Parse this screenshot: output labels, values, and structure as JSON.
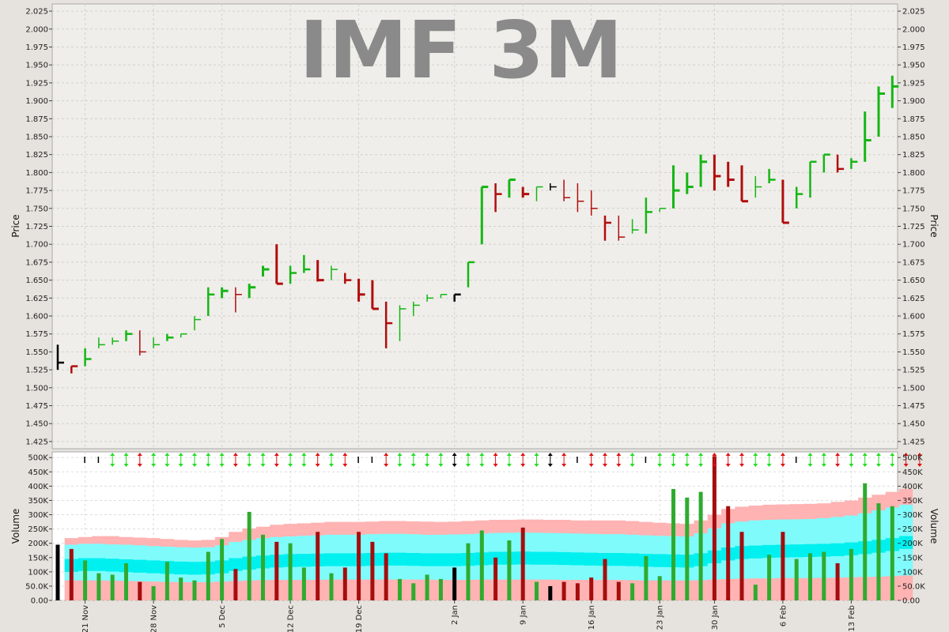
{
  "chart_data": {
    "type": "bar",
    "title": "IMF 3M",
    "price_axis": {
      "label": "Price",
      "ylim": [
        1.415,
        2.035
      ],
      "ticks": [
        "2.025",
        "2.000",
        "1.975",
        "1.950",
        "1.925",
        "1.900",
        "1.875",
        "1.850",
        "1.825",
        "1.800",
        "1.775",
        "1.750",
        "1.725",
        "1.700",
        "1.675",
        "1.650",
        "1.625",
        "1.600",
        "1.575",
        "1.550",
        "1.525",
        "1.500",
        "1.475",
        "1.450",
        "1.425"
      ]
    },
    "volume_axis": {
      "label": "Volume",
      "ylim": [
        0,
        520000
      ],
      "ticks": [
        "500K",
        "450K",
        "400K",
        "350K",
        "300K",
        "250K",
        "200K",
        "150K",
        "100K",
        "50.0K",
        "0.00"
      ]
    },
    "x_ticks": [
      {
        "label": "21 Nov",
        "i": 2
      },
      {
        "label": "28 Nov",
        "i": 7
      },
      {
        "label": "5 Dec",
        "i": 12
      },
      {
        "label": "12 Dec",
        "i": 17
      },
      {
        "label": "19 Dec",
        "i": 22
      },
      {
        "label": "2 Jan",
        "i": 29
      },
      {
        "label": "9 Jan",
        "i": 34
      },
      {
        "label": "16 Jan",
        "i": 39
      },
      {
        "label": "23 Jan",
        "i": 44
      },
      {
        "label": "30 Jan",
        "i": 48
      },
      {
        "label": "6 Feb",
        "i": 53
      },
      {
        "label": "13 Feb",
        "i": 58
      }
    ],
    "bars": [
      {
        "o": 1.535,
        "h": 1.56,
        "l": 1.525,
        "c": 1.535,
        "v": 195000,
        "color": "black"
      },
      {
        "o": 1.53,
        "h": 1.53,
        "l": 1.52,
        "c": 1.53,
        "v": 180000,
        "color": "red"
      },
      {
        "o": 1.535,
        "h": 1.555,
        "l": 1.53,
        "c": 1.54,
        "v": 140000,
        "color": "green"
      },
      {
        "o": 1.555,
        "h": 1.57,
        "l": 1.555,
        "c": 1.56,
        "v": 95000,
        "color": "green"
      },
      {
        "o": 1.56,
        "h": 1.57,
        "l": 1.56,
        "c": 1.565,
        "v": 90000,
        "color": "green"
      },
      {
        "o": 1.565,
        "h": 1.58,
        "l": 1.565,
        "c": 1.575,
        "v": 130000,
        "color": "green"
      },
      {
        "o": 1.575,
        "h": 1.58,
        "l": 1.545,
        "c": 1.55,
        "v": 65000,
        "color": "red"
      },
      {
        "o": 1.555,
        "h": 1.57,
        "l": 1.555,
        "c": 1.56,
        "v": 50000,
        "color": "green"
      },
      {
        "o": 1.565,
        "h": 1.575,
        "l": 1.565,
        "c": 1.57,
        "v": 135000,
        "color": "green"
      },
      {
        "o": 1.57,
        "h": 1.575,
        "l": 1.57,
        "c": 1.575,
        "v": 80000,
        "color": "green"
      },
      {
        "o": 1.58,
        "h": 1.6,
        "l": 1.58,
        "c": 1.595,
        "v": 70000,
        "color": "green"
      },
      {
        "o": 1.6,
        "h": 1.64,
        "l": 1.6,
        "c": 1.63,
        "v": 170000,
        "color": "green"
      },
      {
        "o": 1.625,
        "h": 1.64,
        "l": 1.625,
        "c": 1.635,
        "v": 215000,
        "color": "green"
      },
      {
        "o": 1.64,
        "h": 1.64,
        "l": 1.605,
        "c": 1.63,
        "v": 110000,
        "color": "red"
      },
      {
        "o": 1.63,
        "h": 1.645,
        "l": 1.625,
        "c": 1.64,
        "v": 310000,
        "color": "green"
      },
      {
        "o": 1.66,
        "h": 1.67,
        "l": 1.655,
        "c": 1.665,
        "v": 230000,
        "color": "green"
      },
      {
        "o": 1.7,
        "h": 1.7,
        "l": 1.645,
        "c": 1.645,
        "v": 205000,
        "color": "red"
      },
      {
        "o": 1.655,
        "h": 1.67,
        "l": 1.645,
        "c": 1.66,
        "v": 200000,
        "color": "green"
      },
      {
        "o": 1.665,
        "h": 1.685,
        "l": 1.66,
        "c": 1.665,
        "v": 115000,
        "color": "green"
      },
      {
        "o": 1.675,
        "h": 1.678,
        "l": 1.648,
        "c": 1.65,
        "v": 240000,
        "color": "red"
      },
      {
        "o": 1.655,
        "h": 1.67,
        "l": 1.65,
        "c": 1.665,
        "v": 95000,
        "color": "green"
      },
      {
        "o": 1.66,
        "h": 1.66,
        "l": 1.645,
        "c": 1.65,
        "v": 115000,
        "color": "red"
      },
      {
        "o": 1.65,
        "h": 1.652,
        "l": 1.62,
        "c": 1.63,
        "v": 240000,
        "color": "red"
      },
      {
        "o": 1.65,
        "h": 1.65,
        "l": 1.61,
        "c": 1.61,
        "v": 205000,
        "color": "red"
      },
      {
        "o": 1.6,
        "h": 1.62,
        "l": 1.555,
        "c": 1.59,
        "v": 165000,
        "color": "red"
      },
      {
        "o": 1.605,
        "h": 1.615,
        "l": 1.565,
        "c": 1.61,
        "v": 75000,
        "color": "green"
      },
      {
        "o": 1.605,
        "h": 1.62,
        "l": 1.6,
        "c": 1.615,
        "v": 60000,
        "color": "green"
      },
      {
        "o": 1.62,
        "h": 1.63,
        "l": 1.62,
        "c": 1.625,
        "v": 90000,
        "color": "green"
      },
      {
        "o": 1.625,
        "h": 1.63,
        "l": 1.625,
        "c": 1.63,
        "v": 75000,
        "color": "green"
      },
      {
        "o": 1.63,
        "h": 1.63,
        "l": 1.62,
        "c": 1.63,
        "v": 115000,
        "color": "black"
      },
      {
        "o": 1.64,
        "h": 1.675,
        "l": 1.64,
        "c": 1.675,
        "v": 200000,
        "color": "green"
      },
      {
        "o": 1.7,
        "h": 1.78,
        "l": 1.7,
        "c": 1.78,
        "v": 245000,
        "color": "green"
      },
      {
        "o": 1.77,
        "h": 1.785,
        "l": 1.745,
        "c": 1.77,
        "v": 150000,
        "color": "red"
      },
      {
        "o": 1.77,
        "h": 1.79,
        "l": 1.765,
        "c": 1.79,
        "v": 210000,
        "color": "green"
      },
      {
        "o": 1.775,
        "h": 1.78,
        "l": 1.765,
        "c": 1.77,
        "v": 255000,
        "color": "red"
      },
      {
        "o": 1.765,
        "h": 1.78,
        "l": 1.76,
        "c": 1.78,
        "v": 65000,
        "color": "green"
      },
      {
        "o": 1.785,
        "h": 1.785,
        "l": 1.775,
        "c": 1.78,
        "v": 50000,
        "color": "black"
      },
      {
        "o": 1.78,
        "h": 1.79,
        "l": 1.76,
        "c": 1.765,
        "v": 65000,
        "color": "red"
      },
      {
        "o": 1.76,
        "h": 1.785,
        "l": 1.745,
        "c": 1.76,
        "v": 60000,
        "color": "red"
      },
      {
        "o": 1.75,
        "h": 1.775,
        "l": 1.74,
        "c": 1.75,
        "v": 80000,
        "color": "red"
      },
      {
        "o": 1.74,
        "h": 1.74,
        "l": 1.705,
        "c": 1.73,
        "v": 145000,
        "color": "red"
      },
      {
        "o": 1.73,
        "h": 1.74,
        "l": 1.705,
        "c": 1.71,
        "v": 65000,
        "color": "red"
      },
      {
        "o": 1.715,
        "h": 1.735,
        "l": 1.715,
        "c": 1.72,
        "v": 60000,
        "color": "green"
      },
      {
        "o": 1.715,
        "h": 1.765,
        "l": 1.715,
        "c": 1.745,
        "v": 155000,
        "color": "green"
      },
      {
        "o": 1.745,
        "h": 1.75,
        "l": 1.745,
        "c": 1.75,
        "v": 85000,
        "color": "green"
      },
      {
        "o": 1.755,
        "h": 1.81,
        "l": 1.75,
        "c": 1.775,
        "v": 390000,
        "color": "green"
      },
      {
        "o": 1.775,
        "h": 1.8,
        "l": 1.77,
        "c": 1.78,
        "v": 360000,
        "color": "green"
      },
      {
        "o": 1.78,
        "h": 1.825,
        "l": 1.78,
        "c": 1.815,
        "v": 380000,
        "color": "green"
      },
      {
        "o": 1.825,
        "h": 1.825,
        "l": 1.775,
        "c": 1.795,
        "v": 505000,
        "color": "red"
      },
      {
        "o": 1.81,
        "h": 1.815,
        "l": 1.78,
        "c": 1.79,
        "v": 330000,
        "color": "red"
      },
      {
        "o": 1.81,
        "h": 1.81,
        "l": 1.76,
        "c": 1.76,
        "v": 240000,
        "color": "red"
      },
      {
        "o": 1.775,
        "h": 1.795,
        "l": 1.765,
        "c": 1.78,
        "v": 55000,
        "color": "green"
      },
      {
        "o": 1.785,
        "h": 1.805,
        "l": 1.785,
        "c": 1.79,
        "v": 160000,
        "color": "green"
      },
      {
        "o": 1.79,
        "h": 1.79,
        "l": 1.73,
        "c": 1.73,
        "v": 240000,
        "color": "red"
      },
      {
        "o": 1.75,
        "h": 1.78,
        "l": 1.75,
        "c": 1.77,
        "v": 145000,
        "color": "green"
      },
      {
        "o": 1.77,
        "h": 1.815,
        "l": 1.765,
        "c": 1.815,
        "v": 165000,
        "color": "green"
      },
      {
        "o": 1.8,
        "h": 1.825,
        "l": 1.8,
        "c": 1.825,
        "v": 170000,
        "color": "green"
      },
      {
        "o": 1.825,
        "h": 1.825,
        "l": 1.8,
        "c": 1.805,
        "v": 130000,
        "color": "red"
      },
      {
        "o": 1.805,
        "h": 1.82,
        "l": 1.805,
        "c": 1.815,
        "v": 180000,
        "color": "green"
      },
      {
        "o": 1.815,
        "h": 1.885,
        "l": 1.815,
        "c": 1.845,
        "v": 410000,
        "color": "green"
      },
      {
        "o": 1.85,
        "h": 1.92,
        "l": 1.85,
        "c": 1.91,
        "v": 340000,
        "color": "green"
      },
      {
        "o": 1.89,
        "h": 1.935,
        "l": 1.89,
        "c": 1.92,
        "v": 330000,
        "color": "green"
      }
    ],
    "volume_bands": {
      "outer_upper": [
        218000,
        222000,
        225000,
        225000,
        222000,
        220000,
        218000,
        215000,
        212000,
        210000,
        212000,
        222000,
        240000,
        252000,
        258000,
        265000,
        268000,
        270000,
        272000,
        275000,
        275000,
        275000,
        276000,
        278000,
        278000,
        277000,
        276000,
        275000,
        276000,
        278000,
        280000,
        282000,
        282000,
        283000,
        283000,
        282000,
        282000,
        280000,
        280000,
        280000,
        280000,
        278000,
        275000,
        272000,
        270000,
        268000,
        280000,
        300000,
        320000,
        328000,
        332000,
        335000,
        336000,
        337000,
        338000,
        340000,
        345000,
        350000,
        360000,
        370000,
        380000,
        390000
      ],
      "inner_upper": [
        195000,
        198000,
        198000,
        196000,
        195000,
        193000,
        190000,
        188000,
        186000,
        185000,
        186000,
        193000,
        205000,
        212000,
        218000,
        222000,
        224000,
        226000,
        228000,
        230000,
        230000,
        230000,
        232000,
        233000,
        233000,
        232000,
        230000,
        230000,
        231000,
        232000,
        234000,
        236000,
        237000,
        238000,
        237000,
        236000,
        235000,
        234000,
        233000,
        232000,
        232000,
        230000,
        228000,
        226000,
        225000,
        224000,
        235000,
        252000,
        270000,
        276000,
        280000,
        282000,
        283000,
        284000,
        285000,
        288000,
        292000,
        297000,
        305000,
        315000,
        325000,
        335000
      ],
      "inner_lower": [
        145000,
        148000,
        148000,
        146000,
        144000,
        142000,
        140000,
        138000,
        136000,
        135000,
        136000,
        140000,
        148000,
        153000,
        157000,
        160000,
        162000,
        163000,
        164000,
        165000,
        165000,
        165000,
        166000,
        167000,
        167000,
        166000,
        165000,
        165000,
        165000,
        166000,
        168000,
        170000,
        170000,
        171000,
        170000,
        170000,
        169000,
        168000,
        167000,
        166000,
        166000,
        165000,
        163000,
        162000,
        161000,
        160000,
        165000,
        175000,
        185000,
        190000,
        192000,
        194000,
        195000,
        196000,
        197000,
        198000,
        200000,
        203000,
        207000,
        212000,
        218000,
        225000
      ],
      "outer_lower": [
        70000,
        70000,
        70000,
        69000,
        68000,
        67000,
        66000,
        65000,
        64000,
        64000,
        64000,
        66000,
        68000,
        70000,
        71000,
        72000,
        72000,
        72000,
        72000,
        73000,
        73000,
        73000,
        73000,
        73000,
        73000,
        73000,
        73000,
        72000,
        72000,
        72000,
        73000,
        73000,
        73000,
        73000,
        73000,
        73000,
        72000,
        72000,
        72000,
        72000,
        72000,
        71000,
        70000,
        70000,
        70000,
        70000,
        71000,
        73000,
        75000,
        76000,
        77000,
        77000,
        78000,
        78000,
        78000,
        79000,
        80000,
        81000,
        82000,
        83000,
        85000,
        87000
      ]
    },
    "signals": [
      "",
      "",
      "ud",
      "du",
      "du",
      "ud",
      "du",
      "du",
      "du",
      "ud",
      "ud",
      "du",
      "du",
      "du",
      "du",
      "du",
      "ud",
      "ud",
      "du",
      "ud",
      "",
      "",
      "ud",
      "ud",
      "ud",
      "du",
      "du",
      "du",
      "du",
      "du",
      "ud",
      "ud",
      "du",
      "ud",
      "du",
      "du",
      "",
      "du",
      "du",
      "ud",
      "ud",
      "",
      "du",
      "du",
      "ud",
      "du",
      "du",
      "ud",
      "du",
      "ud",
      "du",
      "du",
      "",
      "du",
      "ud",
      "du",
      "du",
      "du",
      "du",
      "du",
      "ud",
      "du"
    ]
  }
}
